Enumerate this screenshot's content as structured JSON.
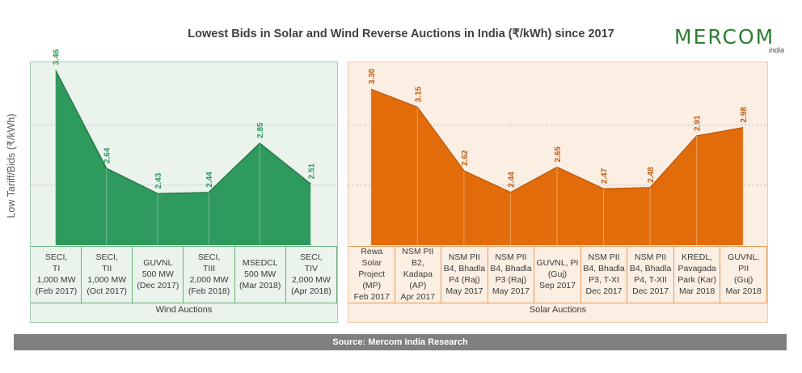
{
  "chart_data": {
    "type": "area",
    "title": "Lowest Bids in Solar and Wind Reverse Auctions in India (₹/kWh) since 2017",
    "ylabel": "Low Tariff/Bids (₹/kWh)",
    "ylim": [
      2.0,
      3.5
    ],
    "groups": [
      {
        "name": "Wind Auctions",
        "color": "#2e9a5e",
        "label_color": "#2e9a5e",
        "categories": [
          "SECI,\nTI\n1,000 MW\n(Feb 2017)",
          "SECI,\nTII\n1,000 MW\n(Oct 2017)",
          "GUVNL\n500 MW\n(Dec 2017)",
          "SECI,\nTIII\n2,000 MW\n(Feb 2018)",
          "MSEDCL\n500 MW\n(Mar 2018)",
          "SECI,\nTIV\n2,000 MW\n(Apr 2018)"
        ],
        "values": [
          3.46,
          2.64,
          2.43,
          2.44,
          2.85,
          2.51
        ],
        "value_labels": [
          "3.46",
          "2.64",
          "2.43",
          "2.44",
          "2.85",
          "2.51"
        ]
      },
      {
        "name": "Solar Auctions",
        "color": "#e36c0a",
        "label_color": "#c55a11",
        "categories": [
          "Rewa Solar\nProject\n(MP)\nFeb 2017",
          "NSM PII\nB2, Kadapa\n(AP)\nApr 2017",
          "NSM PII\nB4, Bhadla\nP4 (Raj)\nMay 2017",
          "NSM PII\nB4, Bhadla\nP3 (Raj)\nMay 2017",
          "GUVNL, PI\n(Guj)\nSep 2017",
          "NSM PII\nB4, Bhadla\nP3, T-XI\nDec 2017",
          "NSM PII\nB4, Bhadla\nP4, T-XII\nDec 2017",
          "KREDL,\nPavagada\nPark (Kar)\nMar 2018",
          "GUVNL, PII\n(Guj)\nMar 2018"
        ],
        "values": [
          3.3,
          3.15,
          2.62,
          2.44,
          2.65,
          2.47,
          2.48,
          2.91,
          2.98
        ],
        "value_labels": [
          "3.30",
          "3.15",
          "2.62",
          "2.44",
          "2.65",
          "2.47",
          "2.48",
          "2.91",
          "2.98"
        ]
      }
    ],
    "grid": true,
    "gridlines": [
      2.5,
      3.0
    ]
  },
  "logo": {
    "main": "MERCOM",
    "sub": "india"
  },
  "source": "Source: Mercom India Research"
}
